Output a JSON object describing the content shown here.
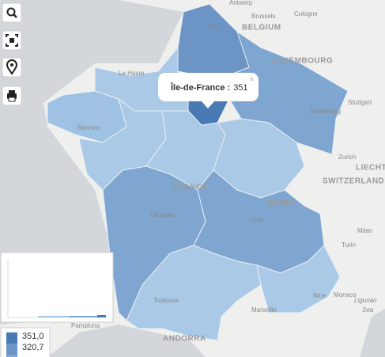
{
  "labels": [
    "Antwerp",
    "Brussels",
    "Cologne",
    "BELGIUM",
    "Lille",
    "LUXEMBOURG",
    "Le Havre",
    "Strasbourg",
    "Stuttgart",
    "Rennes",
    "Zurich",
    "LIECHTE",
    "SWITZERLAND",
    "FRANCE",
    "GENEV",
    "Limoges",
    "Lyon",
    "Milan",
    "Turin",
    "Toulouse",
    "Monaco",
    "Nice",
    "Marseille",
    "Ligurian",
    "Sea",
    "Pamplona",
    "ANDORRA"
  ],
  "popup": {
    "title": "Île-de-France :",
    "value": "351"
  },
  "legend": [
    "351,0",
    "320,7"
  ]
}
